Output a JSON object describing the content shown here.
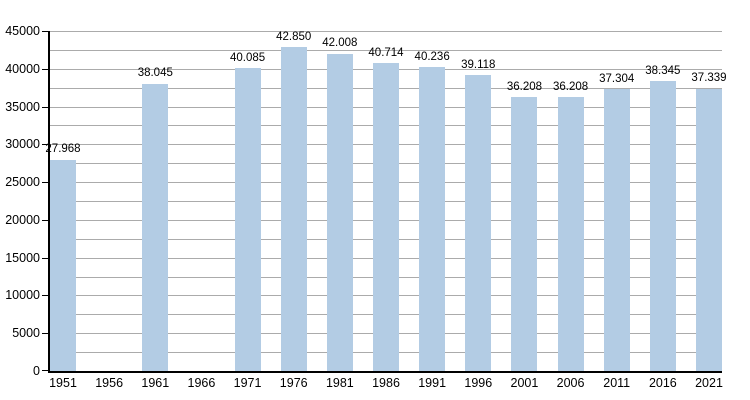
{
  "chart_data": {
    "type": "bar",
    "title": "",
    "xlabel": "",
    "ylabel": "",
    "categories": [
      "1951",
      "1956",
      "1961",
      "1966",
      "1971",
      "1976",
      "1981",
      "1986",
      "1991",
      "1996",
      "2001",
      "2006",
      "2011",
      "2016",
      "2021"
    ],
    "values": [
      27968,
      null,
      38045,
      null,
      40085,
      42850,
      42008,
      40714,
      40236,
      39118,
      36208,
      36208,
      37304,
      38345,
      37339
    ],
    "bar_labels": [
      "27.968",
      null,
      "38.045",
      null,
      "40.085",
      "42.850",
      "42.008",
      "40.714",
      "40.236",
      "39.118",
      "36.208",
      "36.208",
      "37.304",
      "38.345",
      "37.339"
    ],
    "ylim": [
      0,
      45000
    ],
    "ytick_step": 5000,
    "y_tick_labels": [
      "0",
      "5000",
      "10000",
      "15000",
      "20000",
      "25000",
      "30000",
      "35000",
      "40000",
      "45000"
    ],
    "grid_step": 2500,
    "grid": "horizontal gridlines every 2500",
    "legend_position": "none",
    "colors": {
      "bar_fill": "#b3cce4",
      "gridline": "#ababab",
      "axis": "#000000",
      "text": "#000000",
      "background": "#ffffff"
    }
  }
}
